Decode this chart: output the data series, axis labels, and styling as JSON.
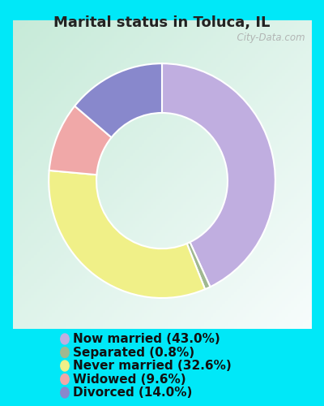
{
  "title": "Marital status in Toluca, IL",
  "title_fontsize": 13,
  "title_fontweight": "bold",
  "title_color": "#222222",
  "background_cyan": "#00e8f8",
  "chart_bg_color_tl": "#c8e8d8",
  "chart_bg_color_br": "#e8f5ee",
  "slices": [
    {
      "label": "Now married (43.0%)",
      "value": 43.0,
      "color": "#c0aee0"
    },
    {
      "label": "Separated (0.8%)",
      "value": 0.8,
      "color": "#a0b890"
    },
    {
      "label": "Never married (32.6%)",
      "value": 32.6,
      "color": "#f0f088"
    },
    {
      "label": "Widowed (9.6%)",
      "value": 9.6,
      "color": "#f0a8a8"
    },
    {
      "label": "Divorced (14.0%)",
      "value": 14.0,
      "color": "#8888cc"
    }
  ],
  "legend_fontsize": 11,
  "watermark": "  City-Data.com",
  "watermark_color": "#aaaaaa",
  "watermark_fontsize": 8.5
}
